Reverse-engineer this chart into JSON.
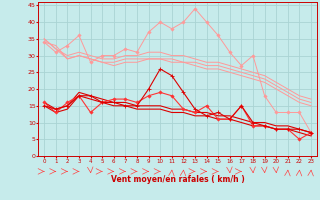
{
  "xlabel": "Vent moyen/en rafales ( km/h )",
  "xlim": [
    -0.5,
    23.5
  ],
  "ylim": [
    0,
    46
  ],
  "yticks": [
    0,
    5,
    10,
    15,
    20,
    25,
    30,
    35,
    40,
    45
  ],
  "xticks": [
    0,
    1,
    2,
    3,
    4,
    5,
    6,
    7,
    8,
    9,
    10,
    11,
    12,
    13,
    14,
    15,
    16,
    17,
    18,
    19,
    20,
    21,
    22,
    23
  ],
  "bg_color": "#c6ebeb",
  "grid_color": "#aad4d4",
  "pink_color": "#ff9999",
  "red_color": "#dd0000",
  "red2_color": "#ff3333",
  "line1_y": [
    34,
    31,
    33,
    36,
    28,
    30,
    30,
    32,
    31,
    37,
    40,
    38,
    40,
    44,
    40,
    36,
    31,
    27,
    30,
    18,
    13,
    13,
    13,
    7
  ],
  "line2_y": [
    35,
    32,
    30,
    31,
    30,
    29,
    29,
    30,
    30,
    31,
    31,
    30,
    30,
    29,
    28,
    28,
    27,
    26,
    25,
    24,
    22,
    20,
    18,
    17
  ],
  "line3_y": [
    34,
    33,
    29,
    30,
    29,
    28,
    28,
    29,
    29,
    29,
    29,
    29,
    28,
    28,
    27,
    27,
    26,
    25,
    24,
    23,
    21,
    19,
    17,
    16
  ],
  "line4_y": [
    35,
    32,
    29,
    30,
    29,
    28,
    27,
    28,
    28,
    29,
    29,
    28,
    28,
    27,
    26,
    26,
    25,
    24,
    23,
    22,
    20,
    18,
    16,
    15
  ],
  "line5_y": [
    16,
    13,
    16,
    18,
    13,
    16,
    17,
    17,
    16,
    18,
    19,
    18,
    14,
    13,
    15,
    11,
    11,
    15,
    9,
    9,
    8,
    8,
    5,
    7
  ],
  "line6_y": [
    15,
    14,
    15,
    18,
    18,
    16,
    16,
    15,
    15,
    20,
    26,
    24,
    19,
    14,
    12,
    13,
    11,
    15,
    10,
    9,
    8,
    8,
    8,
    7
  ],
  "line7_y": [
    16,
    14,
    15,
    19,
    18,
    17,
    16,
    16,
    15,
    15,
    15,
    14,
    14,
    13,
    13,
    12,
    12,
    11,
    10,
    10,
    9,
    9,
    8,
    7
  ],
  "line8_y": [
    15,
    13,
    14,
    18,
    17,
    16,
    15,
    15,
    14,
    14,
    14,
    13,
    13,
    12,
    12,
    11,
    11,
    10,
    9,
    9,
    8,
    8,
    7,
    6
  ],
  "arrow_angles": [
    90,
    90,
    90,
    90,
    45,
    90,
    90,
    90,
    90,
    90,
    90,
    135,
    135,
    90,
    90,
    90,
    45,
    90,
    45,
    45,
    45,
    135,
    135,
    135
  ]
}
